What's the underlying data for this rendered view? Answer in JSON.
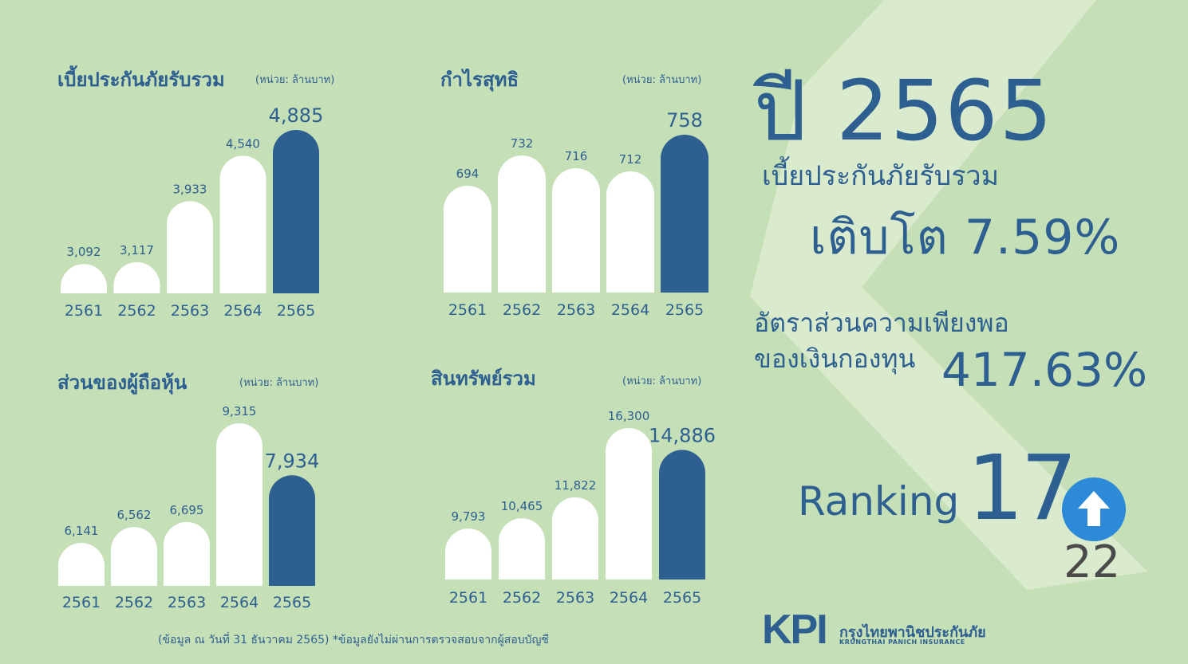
{
  "colors": {
    "background": "#c5dfb6",
    "accent": "#2e5f91",
    "bar_light": "#ffffff",
    "bar_highlight": "#2e5f91",
    "arrow": "#2c8ad8",
    "previous_rank": "#4a4a4a"
  },
  "chart_data": [
    {
      "type": "bar",
      "title": "เบี้ยประกันภัยรับรวม",
      "unit": "(หน่วย: ล้านบาท)",
      "categories": [
        "2561",
        "2562",
        "2563",
        "2564",
        "2565"
      ],
      "values": [
        3092,
        3117,
        3933,
        4540,
        4885
      ],
      "value_labels": [
        "3,092",
        "3,117",
        "3,933",
        "4,540",
        "4,885"
      ],
      "highlight_index": 4,
      "ylim": [
        2700,
        4885
      ]
    },
    {
      "type": "bar",
      "title": "กำไรสุทธิ",
      "unit": "(หน่วย: ล้านบาท)",
      "categories": [
        "2561",
        "2562",
        "2563",
        "2564",
        "2565"
      ],
      "values": [
        694,
        732,
        716,
        712,
        758
      ],
      "value_labels": [
        "694",
        "732",
        "716",
        "712",
        "758"
      ],
      "highlight_index": 4,
      "ylim": [
        560,
        758
      ]
    },
    {
      "type": "bar",
      "title": "ส่วนของผู้ถือหุ้น",
      "unit": "(หน่วย: ล้านบาท)",
      "categories": [
        "2561",
        "2562",
        "2563",
        "2564",
        "2565"
      ],
      "values": [
        6141,
        6562,
        6695,
        9315,
        7934
      ],
      "value_labels": [
        "6,141",
        "6,562",
        "6,695",
        "9,315",
        "7,934"
      ],
      "highlight_index": 4,
      "ylim": [
        5000,
        9315
      ]
    },
    {
      "type": "bar",
      "title": "สินทรัพย์รวม",
      "unit": "(หน่วย: ล้านบาท)",
      "categories": [
        "2561",
        "2562",
        "2563",
        "2564",
        "2565"
      ],
      "values": [
        9793,
        10465,
        11822,
        16300,
        14886
      ],
      "value_labels": [
        "9,793",
        "10,465",
        "11,822",
        "16,300",
        "14,886"
      ],
      "highlight_index": 4,
      "ylim": [
        6500,
        16300
      ]
    }
  ],
  "summary": {
    "year_heading": "ปี 2565",
    "premium_label": "เบี้ยประกันภัยรับรวม",
    "growth_label": "เติบโต 7.59%",
    "capital_ratio_label_1": "อัตราส่วนความเพียงพอ",
    "capital_ratio_label_2": "ของเงินกองทุน",
    "capital_ratio_value": "417.63%",
    "ranking_label": "Ranking",
    "ranking_value": "17",
    "previous_ranking": "22"
  },
  "footnote": "(ข้อมูล ณ วันที่ 31 ธันวาคม 2565) *ข้อมูลยังไม่ผ่านการตรวจสอบจากผู้สอบบัญชี",
  "logo": {
    "mark": "KPI",
    "name_th": "กรุงไทยพานิชประกันภัย",
    "name_en": "KRUNGTHAI PANICH INSURANCE"
  },
  "icons": {
    "rank_arrow": "arrow-up-icon"
  }
}
